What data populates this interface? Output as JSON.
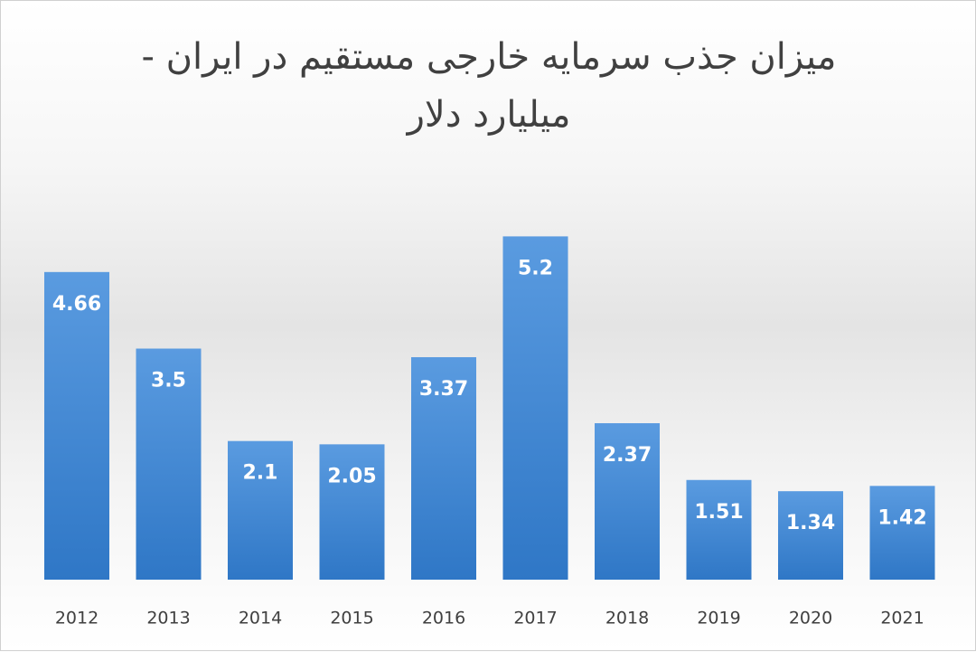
{
  "chart_data": {
    "type": "bar",
    "title": "میزان جذب سرمایه خارجی مستقیم در ایران -\nمیلیارد دلار",
    "categories": [
      "2012",
      "2013",
      "2014",
      "2015",
      "2016",
      "2017",
      "2018",
      "2019",
      "2020",
      "2021"
    ],
    "values": [
      4.66,
      3.5,
      2.1,
      2.05,
      3.37,
      5.2,
      2.37,
      1.51,
      1.34,
      1.42
    ],
    "color": "#3f87d0"
  }
}
